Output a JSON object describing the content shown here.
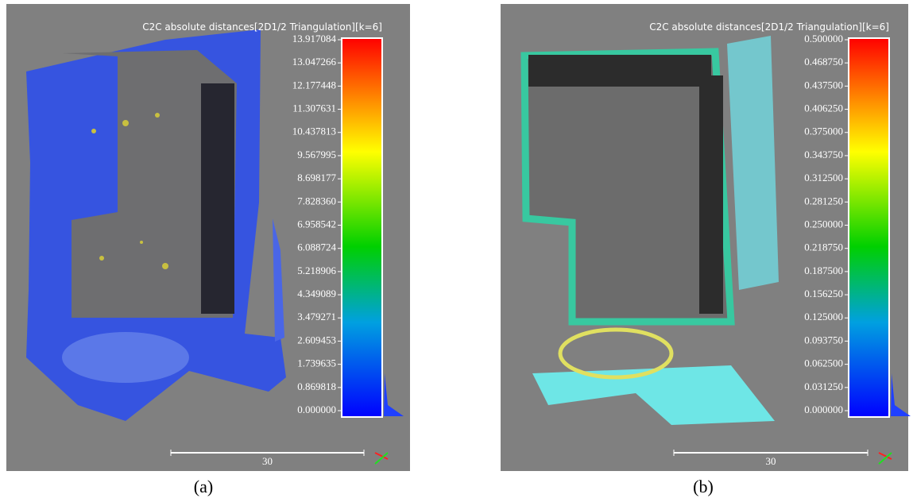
{
  "panels": [
    {
      "title": "C2C absolute distances[2D1/2 Triangulation][k=6]",
      "scale_labels": [
        "13.917084",
        "13.047266",
        "12.177448",
        "11.307631",
        "10.437813",
        "9.567995",
        "8.698177",
        "7.828360",
        "6.958542",
        "6.088724",
        "5.218906",
        "4.349089",
        "3.479271",
        "2.609453",
        "1.739635",
        "0.869818",
        "0.000000"
      ],
      "scale_bar": "30",
      "caption": "(a)"
    },
    {
      "title": "C2C absolute distances[2D1/2 Triangulation][k=6]",
      "scale_labels": [
        "0.500000",
        "0.468750",
        "0.437500",
        "0.406250",
        "0.375000",
        "0.343750",
        "0.312500",
        "0.281250",
        "0.250000",
        "0.218750",
        "0.187500",
        "0.156250",
        "0.125000",
        "0.093750",
        "0.062500",
        "0.031250",
        "0.000000"
      ],
      "scale_bar": "30",
      "caption": "(b)"
    }
  ]
}
